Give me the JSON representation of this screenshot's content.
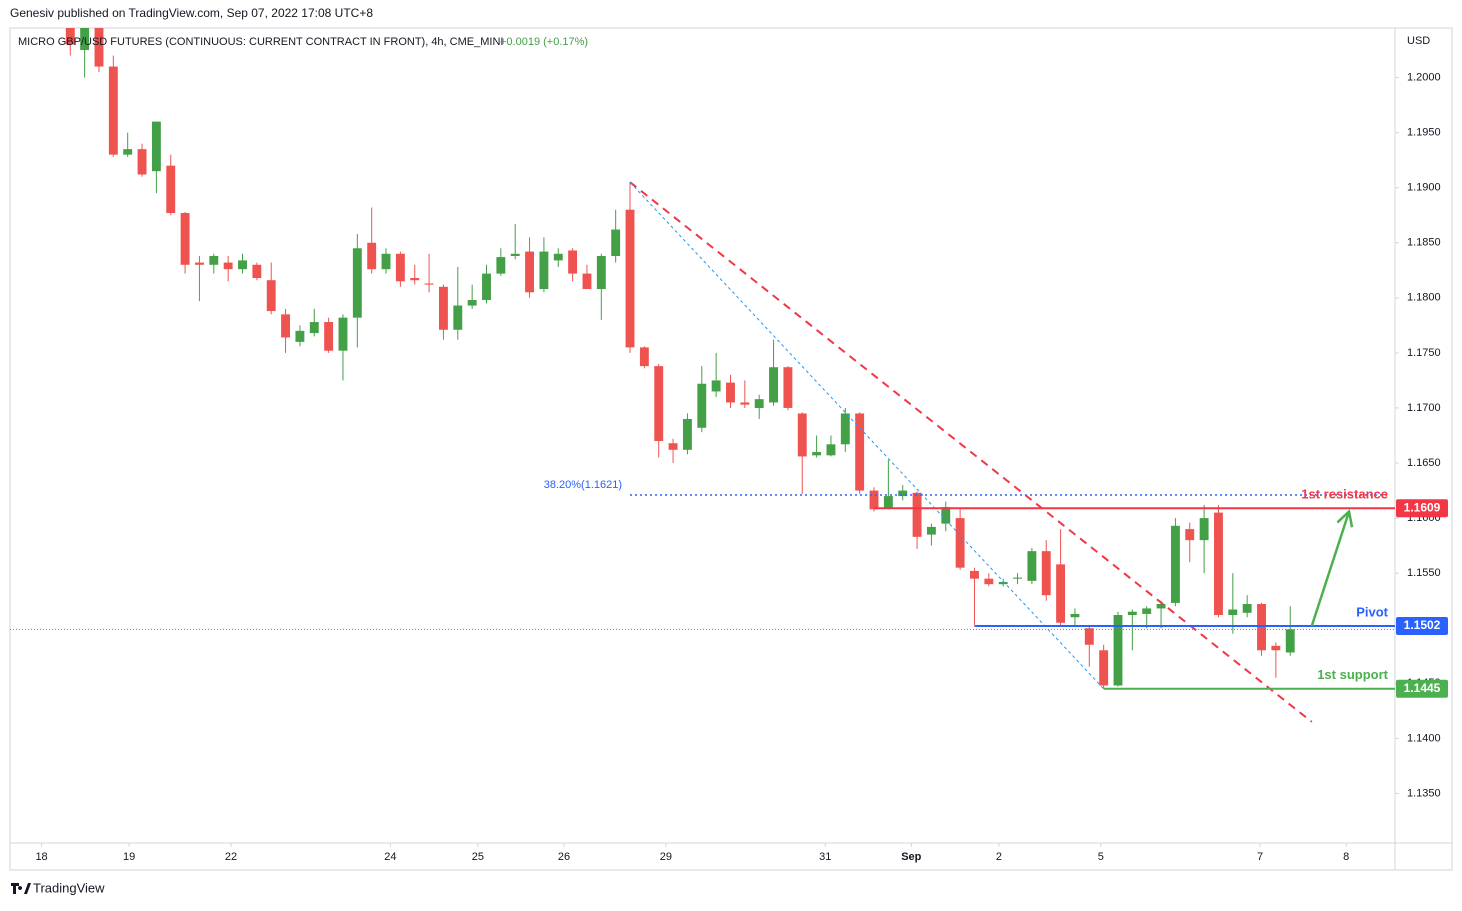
{
  "header": {
    "publisher": "Genesiv published on TradingView.com, Sep 07, 2022 17:08 UTC+8"
  },
  "footer": {
    "brand": "TradingView"
  },
  "chart_data": {
    "type": "candlestick",
    "title": "MICRO GBP/USD FUTURES (CONTINUOUS: CURRENT CONTRACT IN FRONT), 4h, CME_MINI",
    "change": "+0.0019 (+0.17%)",
    "currency": "USD",
    "up_color": "#43a047",
    "down_color": "#ef5350",
    "grid": false,
    "x": [
      0,
      1,
      2,
      3,
      4,
      5,
      6,
      7,
      8,
      9,
      10,
      11,
      12,
      13,
      14,
      15,
      16,
      17,
      18,
      19,
      20,
      21,
      22,
      23,
      24,
      25,
      26,
      27,
      28,
      29,
      30,
      31,
      32,
      33,
      34,
      35,
      36,
      37,
      38,
      39,
      40,
      41,
      42,
      43,
      44,
      45,
      46,
      47,
      48,
      49,
      50,
      51,
      52,
      53,
      54,
      55,
      56,
      57,
      58,
      59,
      60,
      61,
      62,
      63,
      64,
      65,
      66,
      67,
      68,
      69,
      70,
      71,
      72,
      73,
      74,
      75,
      76,
      77,
      78,
      79,
      80,
      81,
      82,
      83,
      84,
      85
    ],
    "open": [
      1.2045,
      1.2025,
      1.2045,
      1.201,
      1.193,
      1.1935,
      1.1915,
      1.192,
      1.1877,
      1.1832,
      1.183,
      1.1832,
      1.1826,
      1.183,
      1.1816,
      1.1785,
      1.176,
      1.1768,
      1.1778,
      1.1752,
      1.1782,
      1.185,
      1.1826,
      1.184,
      1.1818,
      1.1813,
      1.181,
      1.1771,
      1.1793,
      1.1798,
      1.1822,
      1.1838,
      1.1842,
      1.1808,
      1.1834,
      1.1843,
      1.1822,
      1.1808,
      1.1838,
      1.188,
      1.1755,
      1.1738,
      1.1668,
      1.1662,
      1.1682,
      1.1715,
      1.1723,
      1.1705,
      1.17,
      1.1705,
      1.1737,
      1.1695,
      1.1657,
      1.1657,
      1.1667,
      1.1695,
      1.1625,
      1.1609,
      1.162,
      1.1623,
      1.1585,
      1.1595,
      1.16,
      1.1552,
      1.1545,
      1.154,
      1.1545,
      1.1543,
      1.157,
      1.1558,
      1.151,
      1.15,
      1.148,
      1.1448,
      1.1512,
      1.1513,
      1.1518,
      1.1523,
      1.159,
      1.158,
      1.1605,
      1.1512,
      1.1514,
      1.1522,
      1.1484,
      1.1478
    ],
    "high": [
      1.2045,
      1.2045,
      1.2045,
      1.202,
      1.195,
      1.194,
      1.196,
      1.193,
      1.1878,
      1.1838,
      1.184,
      1.1838,
      1.184,
      1.1832,
      1.1832,
      1.179,
      1.1775,
      1.179,
      1.1782,
      1.1785,
      1.1858,
      1.1882,
      1.1845,
      1.1842,
      1.183,
      1.184,
      1.1812,
      1.1828,
      1.1812,
      1.183,
      1.1845,
      1.1867,
      1.1855,
      1.1855,
      1.1845,
      1.1845,
      1.183,
      1.184,
      1.188,
      1.1905,
      1.1756,
      1.174,
      1.1672,
      1.1695,
      1.1738,
      1.175,
      1.173,
      1.1725,
      1.1712,
      1.1762,
      1.1738,
      1.1696,
      1.1675,
      1.1675,
      1.17,
      1.1696,
      1.1628,
      1.1653,
      1.163,
      1.1624,
      1.1595,
      1.1615,
      1.1608,
      1.1555,
      1.155,
      1.1545,
      1.155,
      1.1573,
      1.158,
      1.159,
      1.1518,
      1.1502,
      1.1485,
      1.1515,
      1.1517,
      1.152,
      1.1525,
      1.16,
      1.1596,
      1.1612,
      1.1612,
      1.155,
      1.153,
      1.1523,
      1.1487,
      1.152
    ],
    "low": [
      1.202,
      1.2,
      1.2005,
      1.1928,
      1.1928,
      1.191,
      1.1895,
      1.1875,
      1.1822,
      1.1797,
      1.1822,
      1.1815,
      1.1822,
      1.1816,
      1.1785,
      1.175,
      1.1756,
      1.1765,
      1.175,
      1.1725,
      1.1755,
      1.1822,
      1.1822,
      1.181,
      1.1812,
      1.1805,
      1.1762,
      1.1762,
      1.179,
      1.1795,
      1.182,
      1.1835,
      1.18,
      1.1805,
      1.1828,
      1.1815,
      1.1808,
      1.178,
      1.1832,
      1.175,
      1.1736,
      1.1655,
      1.165,
      1.1658,
      1.1678,
      1.171,
      1.17,
      1.17,
      1.169,
      1.1702,
      1.1698,
      1.1622,
      1.1655,
      1.1656,
      1.166,
      1.1622,
      1.1606,
      1.1608,
      1.1616,
      1.1572,
      1.1575,
      1.1588,
      1.1553,
      1.1503,
      1.1538,
      1.1538,
      1.154,
      1.154,
      1.1525,
      1.1503,
      1.1502,
      1.1465,
      1.1445,
      1.1447,
      1.148,
      1.15,
      1.15,
      1.152,
      1.156,
      1.155,
      1.151,
      1.1495,
      1.151,
      1.1475,
      1.1455,
      1.1475
    ],
    "close": [
      1.203,
      1.2045,
      1.201,
      1.193,
      1.1935,
      1.1912,
      1.196,
      1.1877,
      1.183,
      1.183,
      1.1838,
      1.1826,
      1.1834,
      1.1818,
      1.1788,
      1.1764,
      1.177,
      1.1778,
      1.1752,
      1.1782,
      1.1845,
      1.1826,
      1.184,
      1.1815,
      1.1816,
      1.1812,
      1.1771,
      1.1793,
      1.1798,
      1.1822,
      1.1837,
      1.184,
      1.1805,
      1.1842,
      1.184,
      1.1822,
      1.1808,
      1.1838,
      1.1862,
      1.1755,
      1.1738,
      1.167,
      1.1662,
      1.169,
      1.1722,
      1.1725,
      1.1705,
      1.1703,
      1.1708,
      1.1737,
      1.17,
      1.1656,
      1.166,
      1.1667,
      1.1695,
      1.1625,
      1.1608,
      1.162,
      1.1625,
      1.1583,
      1.1592,
      1.161,
      1.1555,
      1.1545,
      1.154,
      1.1542,
      1.1546,
      1.157,
      1.153,
      1.1505,
      1.1513,
      1.1485,
      1.1448,
      1.1512,
      1.1515,
      1.1518,
      1.1522,
      1.1593,
      1.158,
      1.16,
      1.1512,
      1.1517,
      1.1522,
      1.148,
      1.148,
      1.1499
    ],
    "xlim": [
      -4.2,
      92.3
    ],
    "xticks": [
      {
        "value": -2,
        "label": "18"
      },
      {
        "value": 4.1,
        "label": "19"
      },
      {
        "value": 11.2,
        "label": "22"
      },
      {
        "value": 22.3,
        "label": "24"
      },
      {
        "value": 28.4,
        "label": "25"
      },
      {
        "value": 34.4,
        "label": "26"
      },
      {
        "value": 41.5,
        "label": "29"
      },
      {
        "value": 52.6,
        "label": "31"
      },
      {
        "value": 58.6,
        "label": "Sep"
      },
      {
        "value": 64.7,
        "label": "2"
      },
      {
        "value": 71.8,
        "label": "5"
      },
      {
        "value": 82.9,
        "label": "7"
      },
      {
        "value": 88.9,
        "label": "8"
      }
    ],
    "ylim": [
      1.1305,
      1.2045
    ],
    "yticks": [
      {
        "value": 1.2,
        "label": "1.2000"
      },
      {
        "value": 1.195,
        "label": "1.1950"
      },
      {
        "value": 1.19,
        "label": "1.1900"
      },
      {
        "value": 1.185,
        "label": "1.1850"
      },
      {
        "value": 1.18,
        "label": "1.1800"
      },
      {
        "value": 1.175,
        "label": "1.1750"
      },
      {
        "value": 1.17,
        "label": "1.1700"
      },
      {
        "value": 1.165,
        "label": "1.1650"
      },
      {
        "value": 1.16,
        "label": "1.1600"
      },
      {
        "value": 1.155,
        "label": "1.1550"
      },
      {
        "value": 1.15,
        "label": "1.1500"
      },
      {
        "value": 1.145,
        "label": "1.1450"
      },
      {
        "value": 1.14,
        "label": "1.1400"
      },
      {
        "value": 1.135,
        "label": "1.1350"
      }
    ],
    "fib_level": {
      "label": "38.20%(1.1621)",
      "value": 1.1621,
      "start": 39,
      "color": "#2962ff"
    },
    "levels": [
      {
        "name": "1st resistance",
        "value": 1.1609,
        "start": 56,
        "color": "#f23645"
      },
      {
        "name": "Pivot",
        "value": 1.1502,
        "start": 63,
        "color": "#2962ff"
      },
      {
        "name": "1st support",
        "value": 1.1445,
        "start": 72,
        "color": "#4caf50"
      }
    ],
    "trendlines": [
      {
        "x": [
          39,
          86.5
        ],
        "y": [
          1.1905,
          1.1415
        ],
        "color": "#f23645",
        "style": "dashed"
      },
      {
        "x": [
          39,
          72
        ],
        "y": [
          1.1905,
          1.1445
        ],
        "color": "#2196f3",
        "style": "dotted"
      }
    ],
    "arrow": {
      "x": [
        86.5,
        89.1
      ],
      "y": [
        1.1502,
        1.1606
      ],
      "color": "#4caf50"
    }
  }
}
